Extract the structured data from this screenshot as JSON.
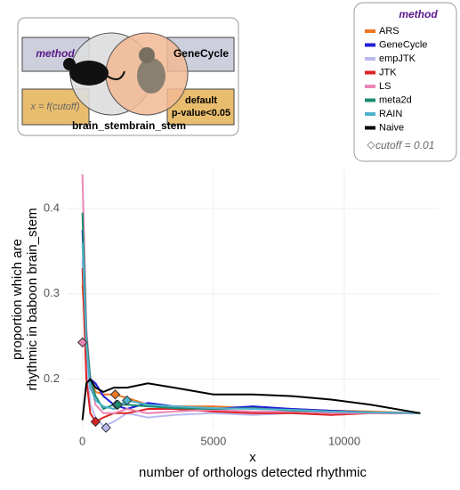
{
  "diagram": {
    "method_label": "method",
    "method_value": "GeneCycle",
    "x_rule": "x = f(cutoff)",
    "default_rule": "default\np-value<0.05",
    "tissues": "brain_stembrain_stem"
  },
  "chart_data": {
    "type": "line",
    "legend_title": "method",
    "legend_note": "cutoff = 0.01",
    "legend": "top-right",
    "xlabel": [
      "x",
      "number of orthologs detected rhythmic"
    ],
    "ylabel": [
      "proportion which are",
      "rhythmic in baboon brain_stem"
    ],
    "xlim": [
      -600,
      13600
    ],
    "ylim": [
      0.141,
      0.446
    ],
    "xticks": [
      0,
      5000,
      10000
    ],
    "yticks": [
      0.2,
      0.3,
      0.4
    ],
    "grid": true,
    "x": [
      0,
      150,
      300,
      500,
      800,
      1200,
      1700,
      2500,
      3500,
      5000,
      6500,
      8000,
      9500,
      11000,
      12900
    ],
    "series": [
      {
        "name": "ARS",
        "color": "#ee7722",
        "values": [
          0.31,
          0.24,
          0.2,
          0.185,
          0.182,
          0.182,
          0.178,
          0.17,
          0.168,
          0.168,
          0.166,
          0.165,
          0.163,
          0.162,
          0.16
        ],
        "marker": [
          1250,
          0.182
        ]
      },
      {
        "name": "GeneCycle",
        "color": "#1f1fd6",
        "values": [
          0.375,
          0.25,
          0.2,
          0.195,
          0.18,
          0.17,
          0.165,
          0.172,
          0.168,
          0.165,
          0.168,
          0.165,
          0.163,
          0.161,
          0.16
        ],
        "marker": [
          1300,
          0.17
        ]
      },
      {
        "name": "empJTK",
        "color": "#b9b9f0",
        "values": [
          0.34,
          0.22,
          0.17,
          0.155,
          0.145,
          0.15,
          0.16,
          0.155,
          0.158,
          0.16,
          0.158,
          0.16,
          0.158,
          0.16,
          0.16
        ],
        "marker": [
          900,
          0.143
        ]
      },
      {
        "name": "JTK",
        "color": "#dd2222",
        "values": [
          0.33,
          0.2,
          0.16,
          0.15,
          0.155,
          0.16,
          0.16,
          0.165,
          0.165,
          0.162,
          0.16,
          0.16,
          0.158,
          0.16,
          0.16
        ],
        "marker": [
          500,
          0.15
        ]
      },
      {
        "name": "LS",
        "color": "#ea86b6",
        "values": [
          0.44,
          0.26,
          0.2,
          0.17,
          0.16,
          0.16,
          0.165,
          0.16,
          0.162,
          0.164,
          0.162,
          0.162,
          0.16,
          0.16,
          0.16
        ],
        "marker": [
          0,
          0.243
        ]
      },
      {
        "name": "meta2d",
        "color": "#1a8c72",
        "values": [
          0.395,
          0.25,
          0.2,
          0.18,
          0.165,
          0.17,
          0.17,
          0.168,
          0.166,
          0.165,
          0.166,
          0.163,
          0.162,
          0.161,
          0.16
        ],
        "marker": [
          1350,
          0.17
        ]
      },
      {
        "name": "RAIN",
        "color": "#4eb2cc",
        "values": [
          0.36,
          0.24,
          0.19,
          0.175,
          0.168,
          0.165,
          0.175,
          0.17,
          0.168,
          0.166,
          0.165,
          0.164,
          0.162,
          0.161,
          0.16
        ],
        "marker": [
          1700,
          0.175
        ]
      },
      {
        "name": "Naive",
        "color": "#000000",
        "values": [
          0.152,
          0.195,
          0.2,
          0.19,
          0.185,
          0.19,
          0.19,
          0.195,
          0.19,
          0.182,
          0.182,
          0.18,
          0.176,
          0.17,
          0.16
        ]
      }
    ]
  }
}
